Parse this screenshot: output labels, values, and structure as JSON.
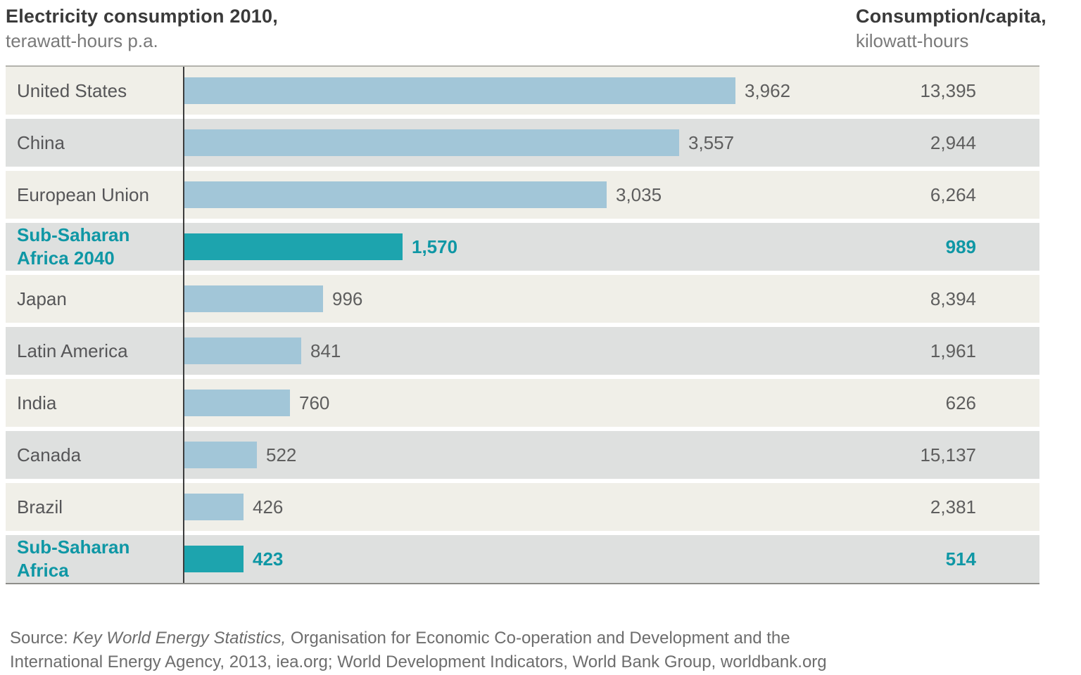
{
  "header": {
    "left_title": "Electricity consumption 2010,",
    "left_subtitle": "terawatt-hours p.a.",
    "right_title": "Consumption/capita,",
    "right_subtitle": "kilowatt-hours"
  },
  "chart_data": {
    "type": "bar",
    "orientation": "horizontal",
    "title": "Electricity consumption 2010",
    "value_unit": "terawatt-hours p.a.",
    "secondary_column_title": "Consumption/capita",
    "secondary_column_unit": "kilowatt-hours",
    "value_axis": {
      "min": 0,
      "ticks_shown": false,
      "gridlines": false
    },
    "legend_position": "none",
    "colors": {
      "bar": "#a2c6d8",
      "highlight_bar": "#1da4ae",
      "highlight_text": "#0f97a5",
      "row_light": "#f0efe8",
      "row_dark": "#dee0df",
      "axis_line": "#3c3c3c"
    },
    "categories": [
      "United States",
      "China",
      "European Union",
      "Sub-Saharan Africa 2040",
      "Japan",
      "Latin America",
      "India",
      "Canada",
      "Brazil",
      "Sub-Saharan Africa"
    ],
    "series": [
      {
        "name": "Electricity consumption 2010 (terawatt-hours p.a.)",
        "values": [
          3962,
          3557,
          3035,
          1570,
          996,
          841,
          760,
          522,
          426,
          423
        ]
      },
      {
        "name": "Consumption/capita (kilowatt-hours)",
        "values": [
          13395,
          2944,
          6264,
          989,
          8394,
          1961,
          626,
          15137,
          2381,
          514
        ]
      }
    ],
    "rows": [
      {
        "label": "United States",
        "twh": 3962,
        "twh_display": "3,962",
        "kwh": 13395,
        "kwh_display": "13,395",
        "highlight": false
      },
      {
        "label": "China",
        "twh": 3557,
        "twh_display": "3,557",
        "kwh": 2944,
        "kwh_display": "2,944",
        "highlight": false
      },
      {
        "label": "European Union",
        "twh": 3035,
        "twh_display": "3,035",
        "kwh": 6264,
        "kwh_display": "6,264",
        "highlight": false
      },
      {
        "label": "Sub-Saharan Africa 2040",
        "twh": 1570,
        "twh_display": "1,570",
        "kwh": 989,
        "kwh_display": "989",
        "highlight": true
      },
      {
        "label": "Japan",
        "twh": 996,
        "twh_display": "996",
        "kwh": 8394,
        "kwh_display": "8,394",
        "highlight": false
      },
      {
        "label": "Latin America",
        "twh": 841,
        "twh_display": "841",
        "kwh": 1961,
        "kwh_display": "1,961",
        "highlight": false
      },
      {
        "label": "India",
        "twh": 760,
        "twh_display": "760",
        "kwh": 626,
        "kwh_display": "626",
        "highlight": false
      },
      {
        "label": "Canada",
        "twh": 522,
        "twh_display": "522",
        "kwh": 15137,
        "kwh_display": "15,137",
        "highlight": false
      },
      {
        "label": "Brazil",
        "twh": 426,
        "twh_display": "426",
        "kwh": 2381,
        "kwh_display": "2,381",
        "highlight": false
      },
      {
        "label": "Sub-Saharan Africa",
        "twh": 423,
        "twh_display": "423",
        "kwh": 514,
        "kwh_display": "514",
        "highlight": true
      }
    ]
  },
  "footer": {
    "prefix": "Source: ",
    "italic": "Key World Energy Statistics,",
    "line1_rest": " Organisation for Economic Co-operation and Development and the",
    "line2": "International Energy Agency, 2013, iea.org; World Development Indicators, World Bank Group, worldbank.org"
  }
}
